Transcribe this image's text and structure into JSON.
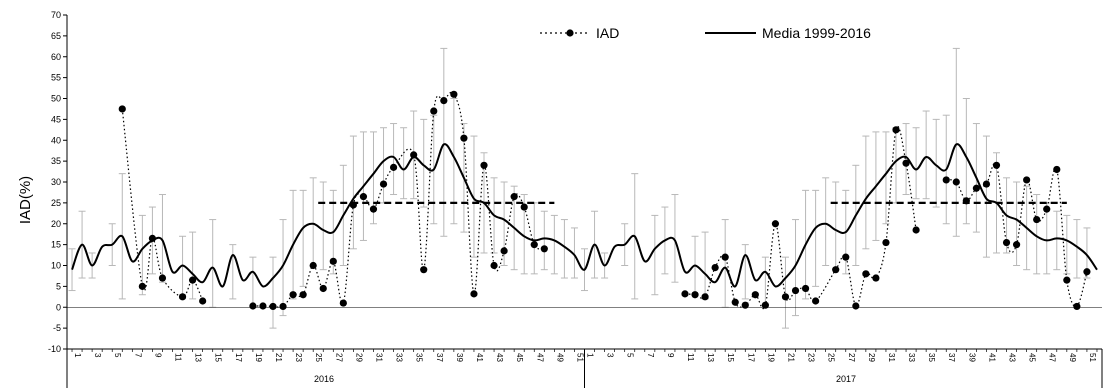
{
  "chart_data": {
    "type": "line",
    "ylabel": "IAD(%)",
    "xlabel": "",
    "ylim": [
      -10,
      70
    ],
    "yticks": [
      -10,
      -5,
      0,
      5,
      10,
      15,
      20,
      25,
      30,
      35,
      40,
      45,
      50,
      55,
      60,
      65,
      70
    ],
    "x_week_labels": [
      "1",
      "3",
      "5",
      "7",
      "9",
      "11",
      "13",
      "15",
      "17",
      "19",
      "21",
      "23",
      "25",
      "27",
      "29",
      "31",
      "33",
      "35",
      "37",
      "39",
      "41",
      "43",
      "45",
      "47",
      "49",
      "51"
    ],
    "years": [
      "2016",
      "2017"
    ],
    "legend": {
      "iad": "IAD",
      "media": "Media  1999-2016"
    },
    "threshold": 25,
    "media_curve": [
      [
        1,
        9
      ],
      [
        2,
        15
      ],
      [
        3,
        10
      ],
      [
        4,
        14.5
      ],
      [
        5,
        15
      ],
      [
        6,
        17
      ],
      [
        7,
        11
      ],
      [
        8,
        14
      ],
      [
        9,
        16
      ],
      [
        10,
        16
      ],
      [
        11,
        8.5
      ],
      [
        12,
        10
      ],
      [
        13,
        8
      ],
      [
        14,
        6
      ],
      [
        15,
        9.5
      ],
      [
        16,
        5
      ],
      [
        17,
        12.5
      ],
      [
        18,
        6.5
      ],
      [
        19,
        8.5
      ],
      [
        20,
        5
      ],
      [
        21,
        7
      ],
      [
        22,
        10
      ],
      [
        23,
        15
      ],
      [
        24,
        19
      ],
      [
        25,
        20
      ],
      [
        26,
        18.5
      ],
      [
        27,
        18
      ],
      [
        28,
        22
      ],
      [
        29,
        26
      ],
      [
        30,
        29
      ],
      [
        31,
        32
      ],
      [
        32,
        35
      ],
      [
        33,
        36
      ],
      [
        34,
        33
      ],
      [
        35,
        36
      ],
      [
        36,
        34
      ],
      [
        37,
        33
      ],
      [
        38,
        39
      ],
      [
        39,
        36
      ],
      [
        40,
        31
      ],
      [
        41,
        26
      ],
      [
        42,
        25
      ],
      [
        43,
        22
      ],
      [
        44,
        21
      ],
      [
        45,
        19
      ],
      [
        46,
        17
      ],
      [
        47,
        16
      ],
      [
        48,
        16.5
      ],
      [
        49,
        16
      ],
      [
        50,
        14.5
      ],
      [
        51,
        12.5
      ],
      [
        52,
        9
      ],
      [
        53,
        15
      ],
      [
        54,
        10
      ],
      [
        55,
        14.5
      ],
      [
        56,
        15
      ],
      [
        57,
        17
      ],
      [
        58,
        11
      ],
      [
        59,
        14
      ],
      [
        60,
        16
      ],
      [
        61,
        16
      ],
      [
        62,
        8.5
      ],
      [
        63,
        10
      ],
      [
        64,
        8
      ],
      [
        65,
        6
      ],
      [
        66,
        9.5
      ],
      [
        67,
        5
      ],
      [
        68,
        12.5
      ],
      [
        69,
        6.5
      ],
      [
        70,
        8.5
      ],
      [
        71,
        5
      ],
      [
        72,
        7
      ],
      [
        73,
        10
      ],
      [
        74,
        15
      ],
      [
        75,
        19
      ],
      [
        76,
        20
      ],
      [
        77,
        18.5
      ],
      [
        78,
        18
      ],
      [
        79,
        22
      ],
      [
        80,
        26
      ],
      [
        81,
        29
      ],
      [
        82,
        32
      ],
      [
        83,
        35
      ],
      [
        84,
        36
      ],
      [
        85,
        33
      ],
      [
        86,
        36
      ],
      [
        87,
        34
      ],
      [
        88,
        33
      ],
      [
        89,
        39
      ],
      [
        90,
        36
      ],
      [
        91,
        31
      ],
      [
        92,
        26
      ],
      [
        93,
        25
      ],
      [
        94,
        22
      ],
      [
        95,
        21
      ],
      [
        96,
        19
      ],
      [
        97,
        17
      ],
      [
        98,
        16
      ],
      [
        99,
        16.5
      ],
      [
        100,
        16
      ],
      [
        101,
        14.5
      ],
      [
        102,
        12.5
      ],
      [
        103,
        9
      ]
    ],
    "media_error_bars": [
      [
        1,
        4,
        14
      ],
      [
        2,
        7,
        23
      ],
      [
        3,
        7,
        13
      ],
      [
        5,
        10,
        20
      ],
      [
        6,
        2,
        32
      ],
      [
        8,
        3,
        22
      ],
      [
        9,
        8,
        24
      ],
      [
        10,
        6,
        27
      ],
      [
        12,
        3,
        17
      ],
      [
        13,
        2,
        18
      ],
      [
        15,
        0,
        21
      ],
      [
        17,
        2,
        15
      ],
      [
        19,
        0,
        12
      ],
      [
        21,
        -5,
        12
      ],
      [
        22,
        -2,
        21
      ],
      [
        23,
        2,
        28
      ],
      [
        24,
        5,
        28
      ],
      [
        25,
        10,
        31
      ],
      [
        26,
        9,
        30
      ],
      [
        27,
        8,
        28
      ],
      [
        28,
        10,
        34
      ],
      [
        29,
        14,
        41
      ],
      [
        30,
        16,
        42
      ],
      [
        31,
        20,
        42
      ],
      [
        32,
        25,
        43
      ],
      [
        33,
        27,
        44
      ],
      [
        34,
        26,
        43
      ],
      [
        35,
        26,
        47
      ],
      [
        36,
        24,
        45
      ],
      [
        37,
        20,
        46
      ],
      [
        38,
        17,
        62
      ],
      [
        39,
        20,
        50
      ],
      [
        40,
        18,
        44
      ],
      [
        41,
        12,
        41
      ],
      [
        42,
        13,
        37
      ],
      [
        43,
        13,
        31
      ],
      [
        44,
        10,
        30
      ],
      [
        45,
        9,
        29
      ],
      [
        46,
        8,
        27
      ],
      [
        47,
        8,
        25
      ],
      [
        48,
        9,
        23
      ],
      [
        49,
        8,
        22
      ],
      [
        50,
        7,
        21
      ],
      [
        51,
        7,
        19
      ],
      [
        52,
        4,
        14
      ],
      [
        53,
        7,
        23
      ],
      [
        54,
        7,
        13
      ],
      [
        56,
        10,
        20
      ],
      [
        57,
        2,
        32
      ],
      [
        59,
        3,
        22
      ],
      [
        60,
        8,
        24
      ],
      [
        61,
        6,
        27
      ],
      [
        63,
        3,
        17
      ],
      [
        64,
        2,
        18
      ],
      [
        66,
        0,
        21
      ],
      [
        68,
        2,
        15
      ],
      [
        70,
        0,
        12
      ],
      [
        72,
        -5,
        12
      ],
      [
        73,
        -2,
        21
      ],
      [
        74,
        2,
        28
      ],
      [
        75,
        5,
        28
      ],
      [
        76,
        10,
        31
      ],
      [
        77,
        9,
        30
      ],
      [
        78,
        8,
        28
      ],
      [
        79,
        10,
        34
      ],
      [
        80,
        14,
        41
      ],
      [
        81,
        16,
        42
      ],
      [
        82,
        20,
        42
      ],
      [
        83,
        25,
        43
      ],
      [
        84,
        27,
        44
      ],
      [
        85,
        26,
        43
      ],
      [
        86,
        26,
        47
      ],
      [
        87,
        24,
        45
      ],
      [
        88,
        20,
        46
      ],
      [
        89,
        17,
        62
      ],
      [
        90,
        20,
        50
      ],
      [
        91,
        18,
        44
      ],
      [
        92,
        12,
        41
      ],
      [
        93,
        13,
        37
      ],
      [
        94,
        13,
        31
      ],
      [
        95,
        10,
        30
      ],
      [
        96,
        9,
        29
      ],
      [
        97,
        8,
        27
      ],
      [
        98,
        8,
        25
      ],
      [
        99,
        9,
        23
      ],
      [
        100,
        8,
        22
      ],
      [
        101,
        7,
        21
      ],
      [
        102,
        7,
        19
      ]
    ],
    "iad_2016": [
      [
        6,
        47.5
      ],
      [
        8,
        5
      ],
      [
        9,
        16.5
      ],
      [
        10,
        7
      ],
      [
        12,
        2.5
      ],
      [
        13,
        6.5
      ],
      [
        14,
        1.5
      ],
      [
        19,
        0.3
      ],
      [
        20,
        0.3
      ],
      [
        21,
        0.2
      ],
      [
        22,
        0.2
      ],
      [
        23,
        3
      ],
      [
        24,
        3
      ],
      [
        25,
        10
      ],
      [
        26,
        4.5
      ],
      [
        27,
        11
      ],
      [
        28,
        1
      ],
      [
        29,
        24.5
      ],
      [
        30,
        26.5
      ],
      [
        31,
        23.5
      ],
      [
        32,
        29.5
      ],
      [
        33,
        33.5
      ],
      [
        35,
        36.5
      ],
      [
        36,
        9
      ],
      [
        37,
        47
      ],
      [
        38,
        49.5
      ],
      [
        39,
        51
      ],
      [
        40,
        40.5
      ],
      [
        41,
        3.2
      ],
      [
        42,
        34
      ],
      [
        43,
        10
      ],
      [
        44,
        13.5
      ],
      [
        45,
        26.5
      ],
      [
        46,
        24
      ],
      [
        47,
        15
      ],
      [
        48,
        14
      ]
    ],
    "iad_2017": [
      [
        62,
        3.2
      ],
      [
        63,
        3
      ],
      [
        64,
        2.5
      ],
      [
        65,
        9.5
      ],
      [
        66,
        12
      ],
      [
        67,
        1.2
      ],
      [
        68,
        0.5
      ],
      [
        69,
        3
      ],
      [
        70,
        0.5
      ],
      [
        71,
        20
      ],
      [
        72,
        2.5
      ],
      [
        73,
        4
      ],
      [
        74,
        4.5
      ],
      [
        75,
        1.5
      ],
      [
        77,
        9
      ],
      [
        78,
        12
      ],
      [
        79,
        0.3
      ],
      [
        80,
        8
      ],
      [
        81,
        7
      ],
      [
        82,
        15.5
      ],
      [
        83,
        42.5
      ],
      [
        84,
        34.5
      ],
      [
        85,
        18.5
      ],
      [
        88,
        30.5
      ],
      [
        89,
        30
      ],
      [
        90,
        25.5
      ],
      [
        91,
        28.5
      ],
      [
        92,
        29.5
      ],
      [
        93,
        34
      ],
      [
        94,
        15.5
      ],
      [
        95,
        15
      ],
      [
        96,
        30.5
      ],
      [
        97,
        21
      ],
      [
        98,
        23.5
      ],
      [
        99,
        33
      ],
      [
        100,
        6.5
      ],
      [
        101,
        0.2
      ],
      [
        102,
        8.5
      ]
    ],
    "threshold_segments": [
      [
        25.5,
        49
      ],
      [
        76.5,
        100
      ]
    ]
  }
}
